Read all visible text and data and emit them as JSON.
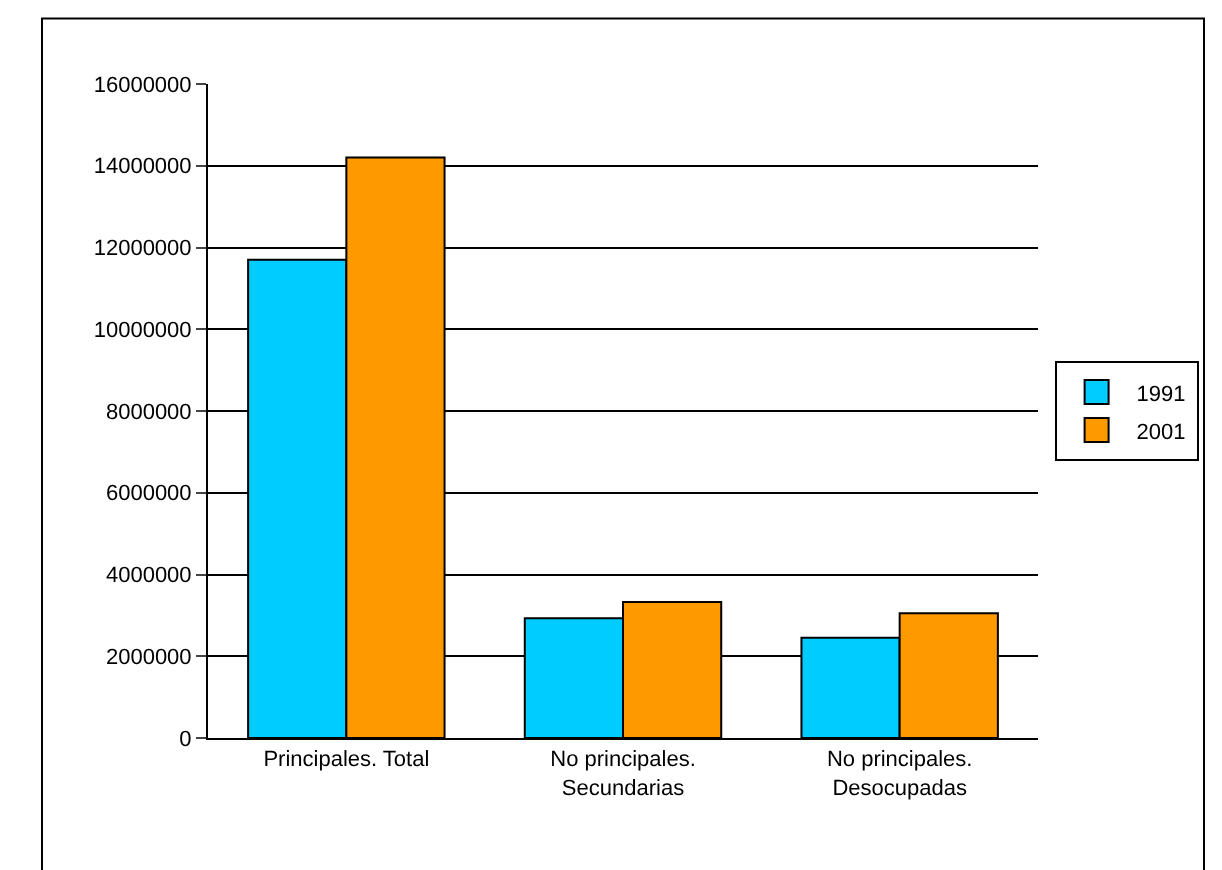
{
  "chart_data": {
    "type": "bar",
    "categories": [
      "Principales. Total",
      "No principales.\nSecundarias",
      "No principales.\nDesocupadas"
    ],
    "series": [
      {
        "name": "1991",
        "color": "#00ccff",
        "values": [
          11700000,
          2930000,
          2450000
        ]
      },
      {
        "name": "2001",
        "color": "#ff9900",
        "values": [
          14200000,
          3330000,
          3050000
        ]
      }
    ],
    "ylim": [
      0,
      16000000
    ],
    "yticks": [
      0,
      2000000,
      4000000,
      6000000,
      8000000,
      10000000,
      12000000,
      14000000,
      16000000
    ],
    "grid": "y",
    "legend": "right"
  }
}
